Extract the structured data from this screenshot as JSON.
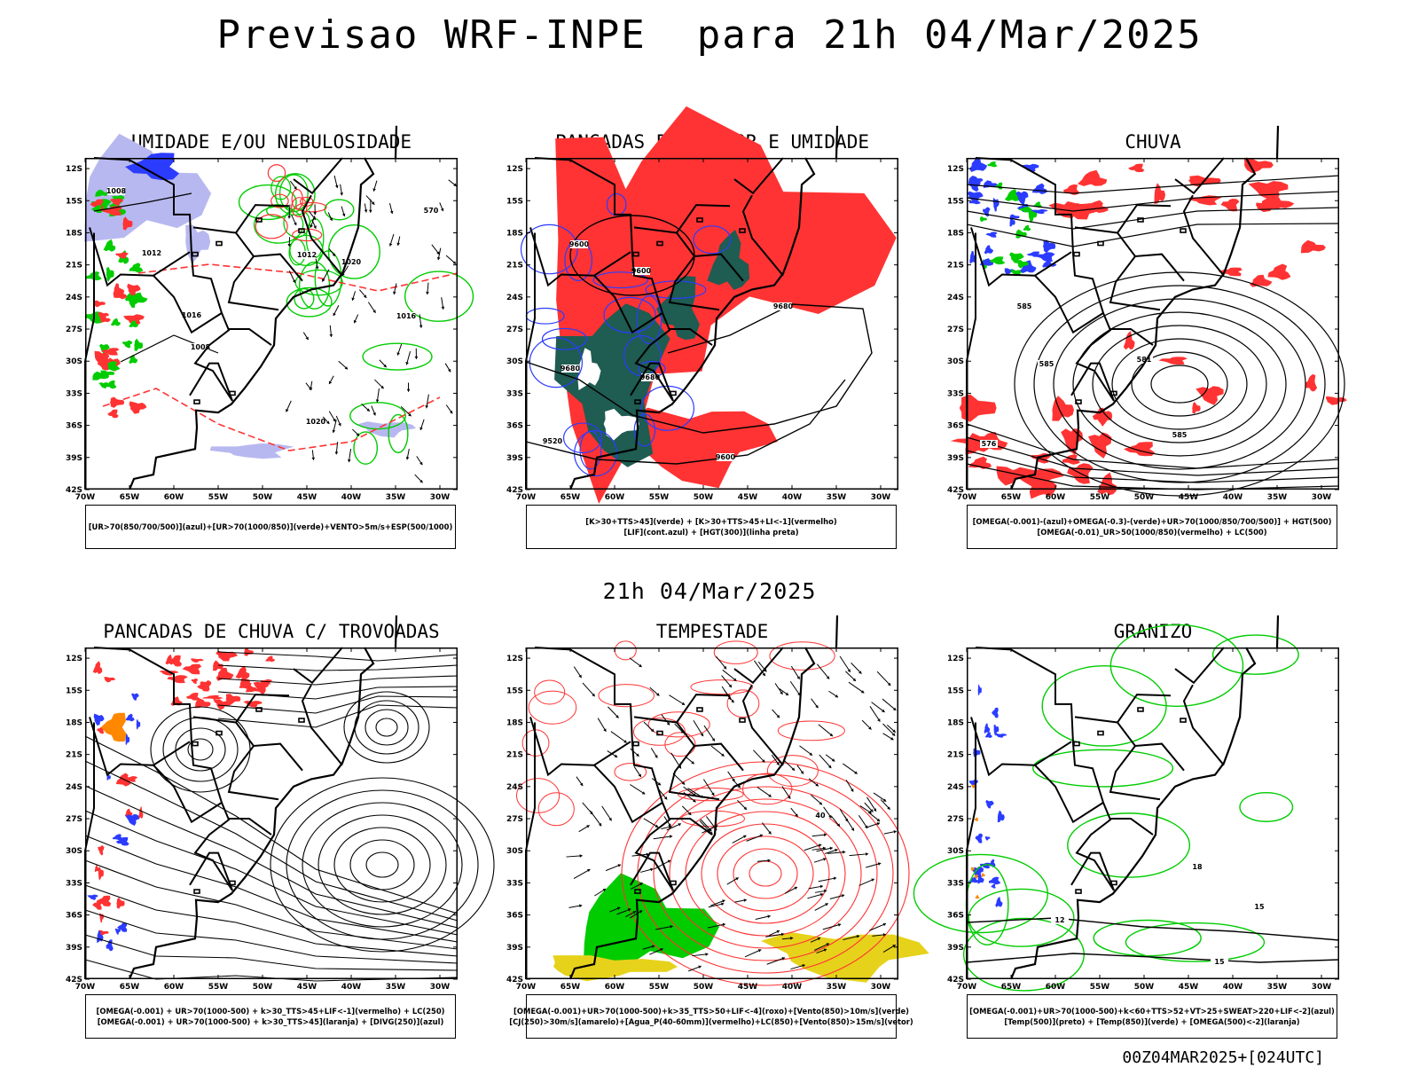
{
  "header": {
    "title": "Previsao WRF-INPE  para 21h 04/Mar/2025"
  },
  "mid_date": "21h 04/Mar/2025",
  "footer": {
    "run_id": "00Z04MAR2025+[024UTC]"
  },
  "axes": {
    "lat_labels": [
      "12S",
      "15S",
      "18S",
      "21S",
      "24S",
      "27S",
      "30S",
      "33S",
      "36S",
      "39S",
      "42S"
    ],
    "lon_labels": [
      "70W",
      "65W",
      "60W",
      "55W",
      "50W",
      "45W",
      "40W",
      "35W",
      "30W"
    ]
  },
  "colors": {
    "blue": "#2b3cff",
    "green": "#00cc00",
    "red": "#ff3333",
    "darkgreen": "#1f5c52",
    "lavender": "#b8b8f0",
    "yellow": "#e6d21a",
    "orange": "#ff8800",
    "purple": "#cc33cc"
  },
  "panels": [
    {
      "id": "umidade",
      "title": "UMIDADE E/OU NEBULOSIDADE",
      "legend": [
        "[UR>70(850/700/500)](azul)+[UR>70(1000/850)](verde)+VENTO>5m/s+ESP(500/1000)"
      ],
      "contour_labels": [
        "1008",
        "1012",
        "1016",
        "1020",
        "570",
        "1016",
        "1020",
        "1012",
        "1008"
      ]
    },
    {
      "id": "pancadas_calor",
      "title": "PANCADAS POR CALOR E UMIDADE",
      "legend": [
        "[K>30+TTS>45](verde) + [K>30+TTS>45+LI<-1](vermelho)",
        "[LIF](cont.azul) + [HGT(300)](linha preta)"
      ],
      "contour_labels": [
        "9600",
        "9600",
        "9680",
        "9680",
        "9520",
        "9600",
        "9680"
      ]
    },
    {
      "id": "chuva",
      "title": "CHUVA",
      "legend": [
        "[OMEGA(-0.001)-(azul)+OMEGA(-0.3)-(verde)+UR>70(1000/850/700/500)] + HGT(500)",
        "[OMEGA(-0.01)_UR>50(1000/850)(vermelho) + LC(500)"
      ],
      "contour_labels": [
        "585",
        "585",
        "581",
        "585",
        "576"
      ]
    },
    {
      "id": "pancadas_trovoadas",
      "title": "PANCADAS DE CHUVA C/ TROVOADAS",
      "legend": [
        "[OMEGA(-0.001) + UR>70(1000-500) + k>30_TTS>45+LIF<-1](vermelho) + LC(250)",
        "[OMEGA(-0.001) + UR>70(1000-500) + k>30_TTS>45](laranja) + [DIVG(250)](azul)"
      ],
      "contour_labels": []
    },
    {
      "id": "tempestade",
      "title": "TEMPESTADE",
      "legend": [
        "[OMEGA(-0.001)+UR>70(1000-500)+k>35_TTS>50+LIF<-4](roxo)+[Vento(850)>10m/s](verde)",
        "[CJ(250)>30m/s](amarelo)+[Agua_P(40-60mm)](vermelho)+LC(850)+[Vento(850)>15m/s](vetor)"
      ],
      "contour_labels": [
        "40"
      ]
    },
    {
      "id": "granizo",
      "title": "GRANIZO",
      "legend": [
        "[OMEGA(-0.001)+UR>70(1000-500)+k<60+TTS>52+VT>25+SWEAT>220+LIF<-2](azul)",
        "[Temp(500)](preto) + [Temp(850)](verde) + [OMEGA(500)<-2](laranja)"
      ],
      "contour_labels": [
        "18",
        "15",
        "15",
        "12"
      ]
    }
  ]
}
